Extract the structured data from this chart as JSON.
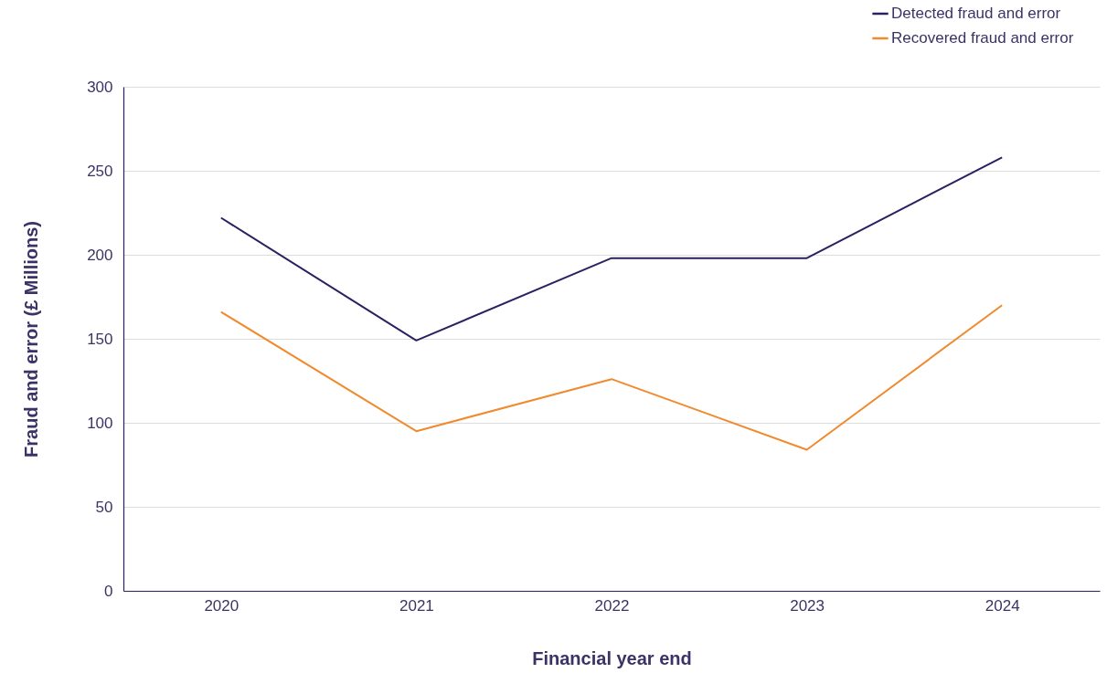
{
  "chart_data": {
    "type": "line",
    "xlabel": "Financial year end",
    "ylabel": "Fraud and error (£ Millions)",
    "categories": [
      "2020",
      "2021",
      "2022",
      "2023",
      "2024"
    ],
    "series": [
      {
        "name": "Detected fraud and error",
        "color": "#2b2162",
        "values": [
          222,
          149,
          198,
          198,
          258
        ]
      },
      {
        "name": "Recovered fraud and error",
        "color": "#f08a2e",
        "values": [
          166,
          95,
          126,
          84,
          170
        ]
      }
    ],
    "ylim": [
      0,
      300
    ],
    "yticks": [
      0,
      50,
      100,
      150,
      200,
      250,
      300
    ],
    "grid": "y",
    "legend": "top right",
    "marker": "none",
    "line_style": "solid"
  }
}
